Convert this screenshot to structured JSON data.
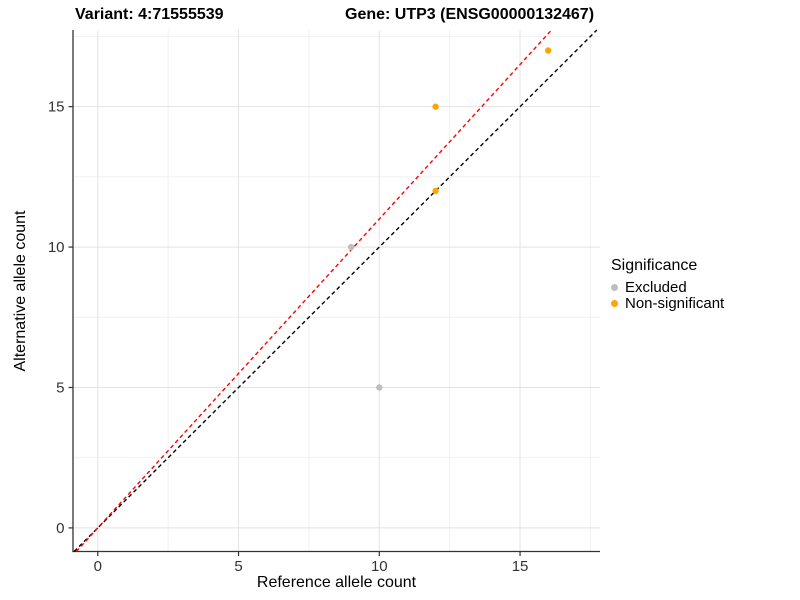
{
  "chart_data": {
    "type": "scatter",
    "title_left": "Variant: 4:71555539",
    "title_right": "Gene: UTP3 (ENSG00000132467)",
    "xlabel": "Reference allele count",
    "ylabel": "Alternative allele count",
    "x_ticks": [
      0,
      5,
      10,
      15
    ],
    "y_ticks": [
      0,
      5,
      10,
      15
    ],
    "x_minor_ticks": [
      2.5,
      7.5,
      12.5,
      17.5
    ],
    "y_minor_ticks": [
      2.5,
      7.5,
      12.5,
      17.5
    ],
    "xlim": [
      -0.88,
      17.84
    ],
    "ylim": [
      -0.84,
      17.73
    ],
    "grid": true,
    "legend": {
      "title": "Significance",
      "position": "right",
      "items": [
        {
          "label": "Excluded",
          "color": "#BEBEBE"
        },
        {
          "label": "Non-significant",
          "color": "#FFA500"
        }
      ]
    },
    "series": [
      {
        "name": "Excluded",
        "color": "#BEBEBE",
        "points": [
          [
            9,
            10
          ],
          [
            10,
            5
          ]
        ]
      },
      {
        "name": "Non-significant",
        "color": "#FFA500",
        "points": [
          [
            12,
            12
          ],
          [
            12,
            15
          ],
          [
            16,
            17
          ]
        ]
      }
    ],
    "ref_lines": [
      {
        "name": "identity-line",
        "color": "#000000",
        "dash": "4,3",
        "slope": 1,
        "intercept": 0
      },
      {
        "name": "expected-ratio-line",
        "color": "#FF0000",
        "dash": "4,3",
        "slope": 1.1,
        "intercept": 0
      }
    ],
    "colors": {
      "major_grid": "#E3E3E3",
      "minor_grid": "#F1F1F1",
      "axis_line": "#333333",
      "tick": "#333333",
      "tick_text": "#333333"
    }
  }
}
